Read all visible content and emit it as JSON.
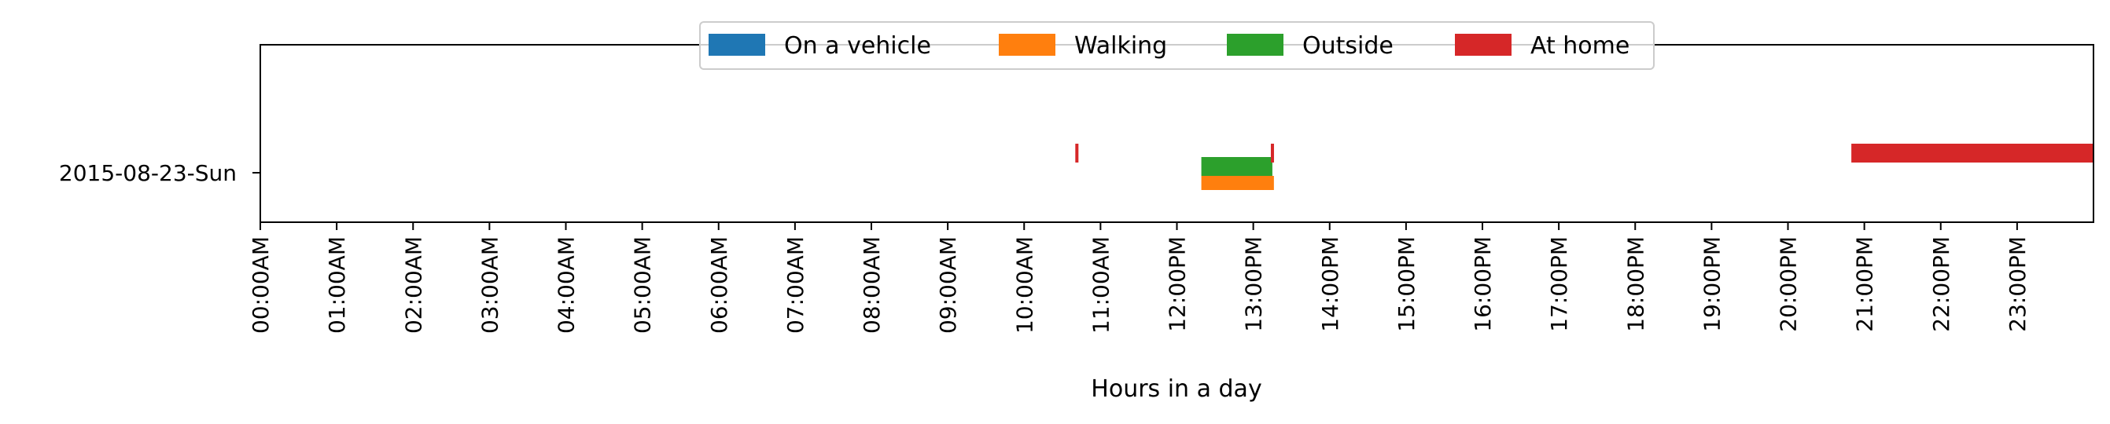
{
  "chart_data": {
    "type": "bar",
    "orientation": "horizontal",
    "xlabel": "Hours in a day",
    "ylabel": "",
    "title": "",
    "xlim": [
      0,
      24
    ],
    "x_tick_values": [
      0,
      1,
      2,
      3,
      4,
      5,
      6,
      7,
      8,
      9,
      10,
      11,
      12,
      13,
      14,
      15,
      16,
      17,
      18,
      19,
      20,
      21,
      22,
      23
    ],
    "x_tick_labels": [
      "00:00AM",
      "01:00AM",
      "02:00AM",
      "03:00AM",
      "04:00AM",
      "05:00AM",
      "06:00AM",
      "07:00AM",
      "08:00AM",
      "09:00AM",
      "10:00AM",
      "11:00AM",
      "12:00PM",
      "13:00PM",
      "14:00PM",
      "15:00PM",
      "16:00PM",
      "17:00PM",
      "18:00PM",
      "19:00PM",
      "20:00PM",
      "21:00PM",
      "22:00PM",
      "23:00PM"
    ],
    "categories": [
      "2015-08-23-Sun"
    ],
    "grid": false,
    "legend_placement": "top-center",
    "series": [
      {
        "name": "On a vehicle",
        "color": "#1f77b4",
        "intervals": []
      },
      {
        "name": "Walking",
        "color": "#ff7f0e",
        "intervals": [
          [
            12.32,
            13.27
          ]
        ]
      },
      {
        "name": "Outside",
        "color": "#2ca02c",
        "intervals": [
          [
            12.32,
            13.25
          ]
        ]
      },
      {
        "name": "At home",
        "color": "#d62728",
        "intervals": [
          [
            10.67,
            10.7
          ],
          [
            13.23,
            13.26
          ],
          [
            20.83,
            24.0
          ]
        ]
      }
    ]
  }
}
